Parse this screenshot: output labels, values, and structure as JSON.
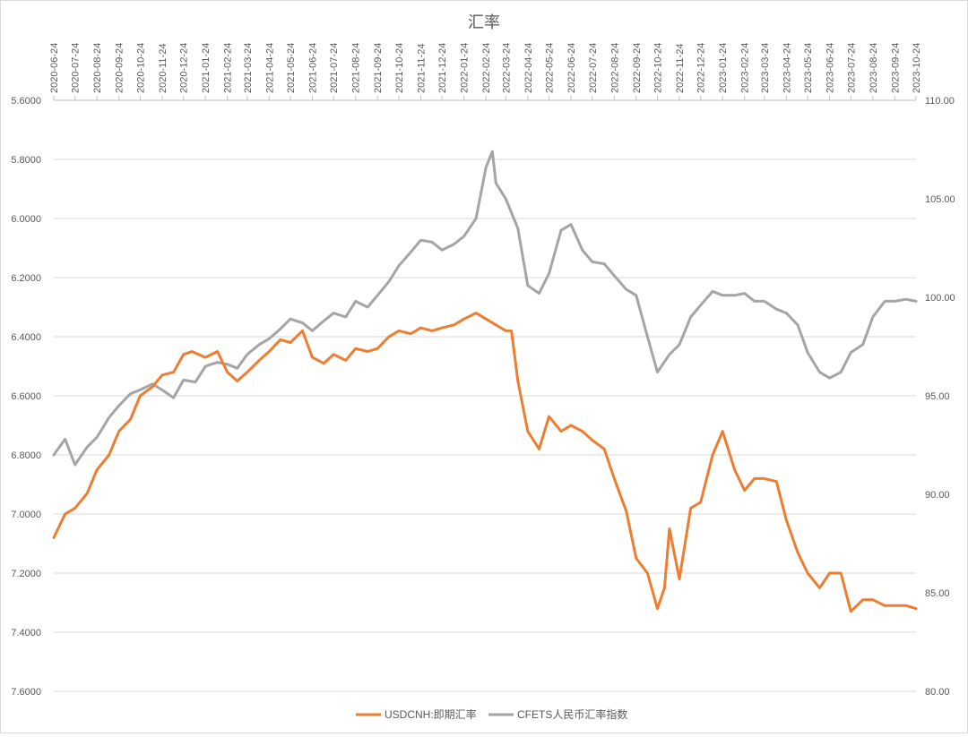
{
  "chart_data": {
    "type": "line",
    "title": "汇率",
    "grid": true,
    "legend_position": "bottom",
    "x_tick_labels": [
      "2020-06-24",
      "2020-07-24",
      "2020-08-24",
      "2020-09-24",
      "2020-10-24",
      "2020-11-24",
      "2020-12-24",
      "2021-01-24",
      "2021-02-24",
      "2021-03-24",
      "2021-04-24",
      "2021-05-24",
      "2021-06-24",
      "2021-07-24",
      "2021-08-24",
      "2021-09-24",
      "2021-10-24",
      "2021-11-24",
      "2021-12-24",
      "2022-01-24",
      "2022-02-24",
      "2022-03-24",
      "2022-04-24",
      "2022-05-24",
      "2022-06-24",
      "2022-07-24",
      "2022-08-24",
      "2022-09-24",
      "2022-10-24",
      "2022-11-24",
      "2022-12-24",
      "2023-01-24",
      "2023-02-24",
      "2023-03-24",
      "2023-04-24",
      "2023-05-24",
      "2023-06-24",
      "2023-07-24",
      "2023-08-24",
      "2023-09-24",
      "2023-10-24"
    ],
    "left_axis": {
      "min": 5.6,
      "max": 7.6,
      "reversed": true,
      "tick_labels": [
        "5.6000",
        "5.8000",
        "6.0000",
        "6.2000",
        "6.4000",
        "6.6000",
        "6.8000",
        "7.0000",
        "7.2000",
        "7.4000",
        "7.6000"
      ]
    },
    "right_axis": {
      "min": 80,
      "max": 110,
      "tick_labels": [
        "110.00",
        "105.00",
        "100.00",
        "95.00",
        "90.00",
        "85.00",
        "80.00"
      ]
    },
    "series": [
      {
        "name": "USDCNH:即期汇率",
        "axis": "left",
        "color": "#ED7D31",
        "x": [
          "2020-06-24",
          "2020-07-10",
          "2020-07-24",
          "2020-08-10",
          "2020-08-24",
          "2020-09-10",
          "2020-09-24",
          "2020-10-10",
          "2020-10-24",
          "2020-11-10",
          "2020-11-24",
          "2020-12-10",
          "2020-12-24",
          "2021-01-05",
          "2021-01-24",
          "2021-02-10",
          "2021-02-24",
          "2021-03-10",
          "2021-03-24",
          "2021-04-10",
          "2021-04-24",
          "2021-05-10",
          "2021-05-24",
          "2021-06-10",
          "2021-06-24",
          "2021-07-10",
          "2021-07-24",
          "2021-08-10",
          "2021-08-24",
          "2021-09-10",
          "2021-09-24",
          "2021-10-10",
          "2021-10-24",
          "2021-11-10",
          "2021-11-24",
          "2021-12-10",
          "2021-12-24",
          "2022-01-10",
          "2022-01-24",
          "2022-02-10",
          "2022-02-24",
          "2022-03-10",
          "2022-03-24",
          "2022-04-01",
          "2022-04-10",
          "2022-04-24",
          "2022-05-10",
          "2022-05-24",
          "2022-06-10",
          "2022-06-24",
          "2022-07-10",
          "2022-07-24",
          "2022-08-10",
          "2022-08-24",
          "2022-09-10",
          "2022-09-24",
          "2022-10-10",
          "2022-10-24",
          "2022-11-03",
          "2022-11-10",
          "2022-11-24",
          "2022-12-10",
          "2022-12-24",
          "2023-01-10",
          "2023-01-24",
          "2023-02-10",
          "2023-02-24",
          "2023-03-10",
          "2023-03-24",
          "2023-04-10",
          "2023-04-24",
          "2023-05-10",
          "2023-05-24",
          "2023-06-10",
          "2023-06-24",
          "2023-07-10",
          "2023-07-24",
          "2023-08-10",
          "2023-08-24",
          "2023-09-10",
          "2023-09-24",
          "2023-10-10",
          "2023-10-24"
        ],
        "values": [
          7.08,
          7.0,
          6.98,
          6.93,
          6.85,
          6.8,
          6.72,
          6.68,
          6.6,
          6.57,
          6.53,
          6.52,
          6.46,
          6.45,
          6.47,
          6.45,
          6.52,
          6.55,
          6.52,
          6.48,
          6.45,
          6.41,
          6.42,
          6.38,
          6.47,
          6.49,
          6.46,
          6.48,
          6.44,
          6.45,
          6.44,
          6.4,
          6.38,
          6.39,
          6.37,
          6.38,
          6.37,
          6.36,
          6.34,
          6.32,
          6.34,
          6.36,
          6.38,
          6.38,
          6.55,
          6.72,
          6.78,
          6.67,
          6.72,
          6.7,
          6.72,
          6.75,
          6.78,
          6.88,
          6.99,
          7.15,
          7.2,
          7.32,
          7.25,
          7.05,
          7.22,
          6.98,
          6.96,
          6.8,
          6.72,
          6.85,
          6.92,
          6.88,
          6.88,
          6.89,
          7.02,
          7.13,
          7.2,
          7.25,
          7.2,
          7.2,
          7.33,
          7.29,
          7.29,
          7.31,
          7.31,
          7.31,
          7.32
        ]
      },
      {
        "name": "CFETS人民币汇率指数",
        "axis": "right",
        "color": "#A5A5A5",
        "x": [
          "2020-06-24",
          "2020-07-10",
          "2020-07-24",
          "2020-08-10",
          "2020-08-24",
          "2020-09-10",
          "2020-09-24",
          "2020-10-10",
          "2020-10-24",
          "2020-11-10",
          "2020-11-24",
          "2020-12-10",
          "2020-12-24",
          "2021-01-10",
          "2021-01-24",
          "2021-02-10",
          "2021-02-24",
          "2021-03-10",
          "2021-03-24",
          "2021-04-10",
          "2021-04-24",
          "2021-05-10",
          "2021-05-24",
          "2021-06-10",
          "2021-06-24",
          "2021-07-10",
          "2021-07-24",
          "2021-08-10",
          "2021-08-24",
          "2021-09-10",
          "2021-09-24",
          "2021-10-10",
          "2021-10-24",
          "2021-11-10",
          "2021-11-24",
          "2021-12-10",
          "2021-12-24",
          "2022-01-10",
          "2022-01-24",
          "2022-02-10",
          "2022-02-24",
          "2022-03-05",
          "2022-03-10",
          "2022-03-24",
          "2022-04-10",
          "2022-04-24",
          "2022-05-10",
          "2022-05-24",
          "2022-06-10",
          "2022-06-24",
          "2022-07-10",
          "2022-07-24",
          "2022-08-10",
          "2022-08-24",
          "2022-09-10",
          "2022-09-24",
          "2022-10-10",
          "2022-10-24",
          "2022-11-10",
          "2022-11-24",
          "2022-12-10",
          "2022-12-24",
          "2023-01-10",
          "2023-01-24",
          "2023-02-10",
          "2023-02-24",
          "2023-03-10",
          "2023-03-24",
          "2023-04-10",
          "2023-04-24",
          "2023-05-10",
          "2023-05-24",
          "2023-06-10",
          "2023-06-24",
          "2023-07-10",
          "2023-07-24",
          "2023-08-10",
          "2023-08-24",
          "2023-09-10",
          "2023-09-24",
          "2023-10-10",
          "2023-10-24"
        ],
        "values": [
          92.0,
          92.8,
          91.5,
          92.4,
          92.9,
          93.9,
          94.5,
          95.1,
          95.3,
          95.6,
          95.3,
          94.9,
          95.8,
          95.7,
          96.5,
          96.7,
          96.6,
          96.4,
          97.1,
          97.6,
          97.9,
          98.4,
          98.9,
          98.7,
          98.3,
          98.8,
          99.2,
          99.0,
          99.8,
          99.5,
          100.1,
          100.8,
          101.6,
          102.3,
          102.9,
          102.8,
          102.4,
          102.7,
          103.1,
          104.0,
          106.6,
          107.4,
          105.8,
          105.0,
          103.5,
          100.6,
          100.2,
          101.2,
          103.4,
          103.7,
          102.4,
          101.8,
          101.7,
          101.1,
          100.4,
          100.1,
          98.0,
          96.2,
          97.1,
          97.6,
          99.0,
          99.6,
          100.3,
          100.1,
          100.1,
          100.2,
          99.8,
          99.8,
          99.4,
          99.2,
          98.6,
          97.2,
          96.2,
          95.9,
          96.2,
          97.2,
          97.6,
          99.0,
          99.8,
          99.8,
          99.9,
          99.8
        ]
      }
    ]
  }
}
